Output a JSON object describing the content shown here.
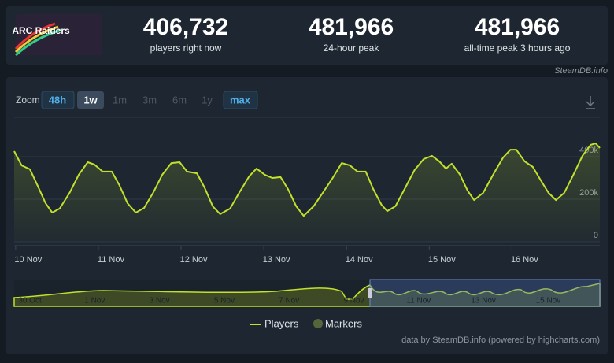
{
  "logo": {
    "text": "ARC Raiders"
  },
  "stats": [
    {
      "value": "406,732",
      "label": "players right now"
    },
    {
      "value": "481,966",
      "label": "24-hour peak"
    },
    {
      "value": "481,966",
      "label": "all-time peak 3 hours ago"
    }
  ],
  "brand": "SteamDB.info",
  "zoom": {
    "label": "Zoom",
    "options": [
      "48h",
      "1w",
      "1m",
      "3m",
      "6m",
      "1y",
      "max"
    ]
  },
  "chart_data": {
    "type": "line",
    "x": [
      -0.17,
      -0.08,
      0.02,
      0.11,
      0.21,
      0.29,
      0.38,
      0.5,
      0.61,
      0.72,
      0.8,
      0.9,
      1.01,
      1.1,
      1.2,
      1.3,
      1.4,
      1.51,
      1.62,
      1.73,
      1.83,
      1.92,
      2.04,
      2.13,
      2.23,
      2.32,
      2.44,
      2.55,
      2.67,
      2.76,
      2.86,
      2.95,
      3.05,
      3.14,
      3.24,
      3.33,
      3.45,
      3.56,
      3.68,
      3.79,
      3.89,
      3.98,
      4.08,
      4.17,
      4.27,
      4.34,
      4.44,
      4.55,
      4.67,
      4.78,
      4.88,
      4.97,
      5.05,
      5.12,
      5.22,
      5.31,
      5.39,
      5.5,
      5.62,
      5.74,
      5.83,
      5.9,
      6.0,
      6.1,
      6.19,
      6.29,
      6.38,
      6.48,
      6.59,
      6.7,
      6.8,
      6.86,
      6.91
    ],
    "series": [
      {
        "name": "Players",
        "color": "#c2e02c",
        "values": [
          426000,
          359000,
          341000,
          267000,
          181000,
          137000,
          156000,
          230000,
          315000,
          374000,
          363000,
          330000,
          330000,
          267000,
          181000,
          137000,
          159000,
          230000,
          315000,
          370000,
          374000,
          330000,
          322000,
          256000,
          167000,
          130000,
          156000,
          230000,
          307000,
          344000,
          315000,
          300000,
          304000,
          248000,
          167000,
          122000,
          167000,
          230000,
          300000,
          370000,
          359000,
          330000,
          330000,
          248000,
          174000,
          144000,
          167000,
          248000,
          337000,
          389000,
          404000,
          378000,
          344000,
          367000,
          315000,
          241000,
          196000,
          230000,
          315000,
          396000,
          433000,
          433000,
          378000,
          352000,
          293000,
          230000,
          196000,
          230000,
          315000,
          404000,
          456000,
          463000,
          441000
        ]
      }
    ],
    "markers": {
      "name": "Markers",
      "color": "#56663a"
    },
    "xlim": [
      -0.17,
      6.91
    ],
    "xticks": [
      {
        "value": 0,
        "label": "10 Nov"
      },
      {
        "value": 1,
        "label": "11 Nov"
      },
      {
        "value": 2,
        "label": "12 Nov"
      },
      {
        "value": 3,
        "label": "13 Nov"
      },
      {
        "value": 4,
        "label": "14 Nov"
      },
      {
        "value": 5,
        "label": "15 Nov"
      },
      {
        "value": 6,
        "label": "16 Nov"
      }
    ],
    "ylim": [
      0,
      600000
    ],
    "yticks": [
      0,
      {
        "value": 200000,
        "label": "200k"
      },
      {
        "value": 400000,
        "label": "400k"
      }
    ],
    "grid": true
  },
  "navigator": {
    "labels": [
      "30 Oct",
      "1 Nov",
      "3 Nov",
      "5 Nov",
      "7 Nov",
      "9 Nov",
      "11 Nov",
      "13 Nov",
      "15 Nov"
    ]
  },
  "credit": "data by SteamDB.info (powered by highcharts.com)"
}
